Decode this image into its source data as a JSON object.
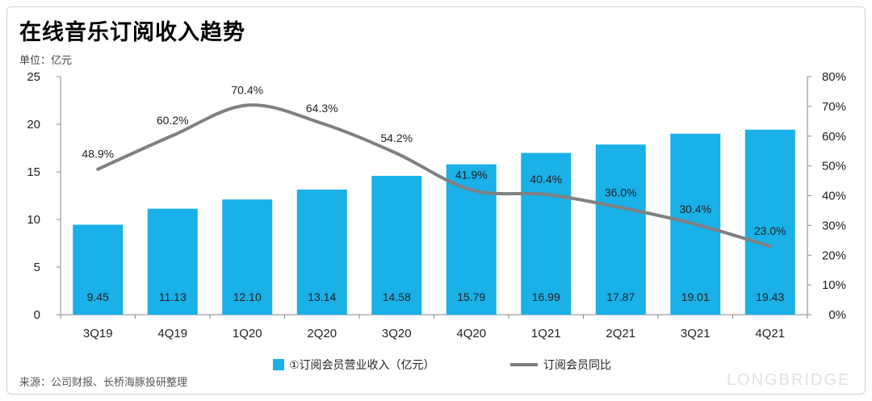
{
  "page": {
    "title": "在线音乐订阅收入趋势",
    "unit": "单位：亿元",
    "source": "来源：公司财报、长桥海豚投研整理",
    "watermark_brand": "LONGBRIDGE"
  },
  "colors": {
    "bar": "#1AB0E8",
    "line": "#808080",
    "axis": "#888888"
  },
  "chart_data": {
    "type": "bar",
    "categories": [
      "3Q19",
      "4Q19",
      "1Q20",
      "2Q20",
      "3Q20",
      "4Q20",
      "1Q21",
      "2Q21",
      "3Q21",
      "4Q21"
    ],
    "series": [
      {
        "name": "①订阅会员营业收入（亿元）",
        "type": "bar",
        "axis": "left",
        "values": [
          9.45,
          11.13,
          12.1,
          13.14,
          14.58,
          15.79,
          16.99,
          17.87,
          19.01,
          19.43
        ],
        "labels": [
          "9.45",
          "11.13",
          "12.10",
          "13.14",
          "14.58",
          "15.79",
          "16.99",
          "17.87",
          "19.01",
          "19.43"
        ]
      },
      {
        "name": "订阅会员同比",
        "type": "line",
        "axis": "right",
        "values": [
          48.9,
          60.2,
          70.4,
          64.3,
          54.2,
          41.9,
          40.4,
          36.0,
          30.4,
          23.0
        ],
        "labels": [
          "48.9%",
          "60.2%",
          "70.4%",
          "64.3%",
          "54.2%",
          "41.9%",
          "40.4%",
          "36.0%",
          "30.4%",
          "23.0%"
        ]
      }
    ],
    "y_left": {
      "ylim": [
        0,
        25
      ],
      "ticks": [
        "0",
        "5",
        "10",
        "15",
        "20",
        "25"
      ]
    },
    "y_right": {
      "ylim": [
        0,
        80
      ],
      "ticks": [
        "0%",
        "10%",
        "20%",
        "30%",
        "40%",
        "50%",
        "60%",
        "70%",
        "80%"
      ]
    },
    "grid": false,
    "legend": "bottom"
  }
}
